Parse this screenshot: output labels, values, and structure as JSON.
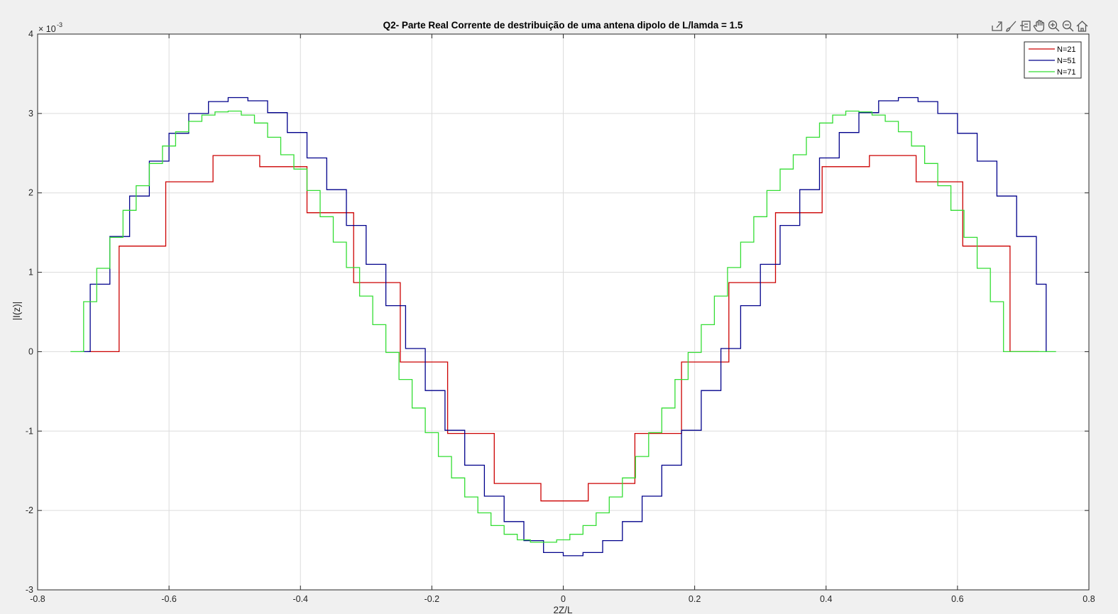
{
  "toolbar": {
    "icons": [
      "export-icon",
      "brush-icon",
      "datatip-icon",
      "pan-icon",
      "zoom-in-icon",
      "zoom-out-icon",
      "home-icon"
    ]
  },
  "chart_data": {
    "type": "line",
    "title": "Q2- Parte Real Corrente de destribuição de uma antena dipolo de L/lamda = 1.5",
    "xlabel": "2Z/L",
    "ylabel": "|I(z)|",
    "y_exponent_label": "× 10",
    "y_exponent": "-3",
    "xlim": [
      -0.8,
      0.8
    ],
    "ylim": [
      -3,
      4
    ],
    "y_scale_factor": 0.001,
    "xticks": [
      -0.8,
      -0.6,
      -0.4,
      -0.2,
      0,
      0.2,
      0.4,
      0.6,
      0.8
    ],
    "xtick_labels": [
      "-0.8",
      "-0.6",
      "-0.4",
      "-0.2",
      "0",
      "0.2",
      "0.4",
      "0.6",
      "0.8"
    ],
    "yticks": [
      -3,
      -2,
      -1,
      0,
      1,
      2,
      3,
      4
    ],
    "ytick_labels": [
      "-3",
      "-2",
      "-1",
      "0",
      "1",
      "2",
      "3",
      "4"
    ],
    "grid": true,
    "legend_position": "top-right",
    "step": true,
    "series": [
      {
        "name": "N=21",
        "color": "#cc0000",
        "x": [
          -0.724,
          -0.676,
          -0.605,
          -0.533,
          -0.462,
          -0.39,
          -0.319,
          -0.248,
          -0.176,
          -0.105,
          -0.034,
          0.038,
          0.109,
          0.18,
          0.252,
          0.323,
          0.394,
          0.466,
          0.537,
          0.608,
          0.68,
          0.724
        ],
        "y": [
          0,
          1.33,
          2.14,
          2.47,
          2.33,
          1.75,
          0.87,
          -0.13,
          -1.03,
          -1.66,
          -1.88,
          -1.66,
          -1.03,
          -0.13,
          0.87,
          1.75,
          2.33,
          2.47,
          2.14,
          1.33,
          0,
          0
        ]
      },
      {
        "name": "N=51",
        "color": "#00008b",
        "x": [
          -0.735,
          -0.72,
          -0.69,
          -0.66,
          -0.63,
          -0.6,
          -0.57,
          -0.54,
          -0.51,
          -0.48,
          -0.45,
          -0.42,
          -0.39,
          -0.36,
          -0.33,
          -0.3,
          -0.27,
          -0.24,
          -0.21,
          -0.18,
          -0.15,
          -0.12,
          -0.09,
          -0.06,
          -0.03,
          0.0,
          0.03,
          0.06,
          0.09,
          0.12,
          0.15,
          0.18,
          0.21,
          0.24,
          0.27,
          0.3,
          0.33,
          0.36,
          0.39,
          0.42,
          0.45,
          0.48,
          0.51,
          0.54,
          0.57,
          0.6,
          0.63,
          0.66,
          0.69,
          0.72,
          0.735
        ],
        "y": [
          0,
          0.85,
          1.45,
          1.96,
          2.4,
          2.75,
          3.0,
          3.15,
          3.2,
          3.16,
          3.01,
          2.76,
          2.44,
          2.04,
          1.59,
          1.1,
          0.58,
          0.04,
          -0.49,
          -0.99,
          -1.43,
          -1.82,
          -2.14,
          -2.38,
          -2.53,
          -2.57,
          -2.53,
          -2.38,
          -2.14,
          -1.82,
          -1.43,
          -0.99,
          -0.49,
          0.04,
          0.58,
          1.1,
          1.59,
          2.04,
          2.44,
          2.76,
          3.01,
          3.16,
          3.2,
          3.15,
          3.0,
          2.75,
          2.4,
          1.96,
          1.45,
          0.85,
          0
        ]
      },
      {
        "name": "N=71",
        "color": "#33dd33",
        "x": [
          -0.75,
          -0.73,
          -0.71,
          -0.69,
          -0.67,
          -0.65,
          -0.63,
          -0.61,
          -0.59,
          -0.57,
          -0.55,
          -0.53,
          -0.51,
          -0.49,
          -0.47,
          -0.45,
          -0.43,
          -0.41,
          -0.39,
          -0.37,
          -0.35,
          -0.33,
          -0.31,
          -0.29,
          -0.27,
          -0.25,
          -0.23,
          -0.21,
          -0.19,
          -0.17,
          -0.15,
          -0.13,
          -0.11,
          -0.09,
          -0.07,
          -0.05,
          -0.03,
          -0.01,
          0.01,
          0.03,
          0.05,
          0.07,
          0.09,
          0.11,
          0.13,
          0.15,
          0.17,
          0.19,
          0.21,
          0.23,
          0.25,
          0.27,
          0.29,
          0.31,
          0.33,
          0.35,
          0.37,
          0.39,
          0.41,
          0.43,
          0.45,
          0.47,
          0.49,
          0.51,
          0.53,
          0.55,
          0.57,
          0.59,
          0.61,
          0.63,
          0.65,
          0.67,
          0.69,
          0.71,
          0.73,
          0.75
        ],
        "y": [
          0,
          0.63,
          1.05,
          1.44,
          1.78,
          2.09,
          2.37,
          2.59,
          2.77,
          2.9,
          2.98,
          3.02,
          3.03,
          2.98,
          2.88,
          2.7,
          2.48,
          2.3,
          2.03,
          1.7,
          1.38,
          1.06,
          0.7,
          0.34,
          -0.01,
          -0.35,
          -0.71,
          -1.02,
          -1.32,
          -1.59,
          -1.83,
          -2.03,
          -2.19,
          -2.3,
          -2.37,
          -2.4,
          -2.4,
          -2.37,
          -2.3,
          -2.19,
          -2.03,
          -1.83,
          -1.59,
          -1.32,
          -1.02,
          -0.71,
          -0.35,
          -0.01,
          0.34,
          0.7,
          1.06,
          1.38,
          1.7,
          2.03,
          2.3,
          2.48,
          2.7,
          2.88,
          2.98,
          3.03,
          3.02,
          2.98,
          2.9,
          2.77,
          2.59,
          2.37,
          2.09,
          1.78,
          1.44,
          1.05,
          0.63,
          0,
          0,
          0,
          0,
          0
        ]
      }
    ]
  }
}
